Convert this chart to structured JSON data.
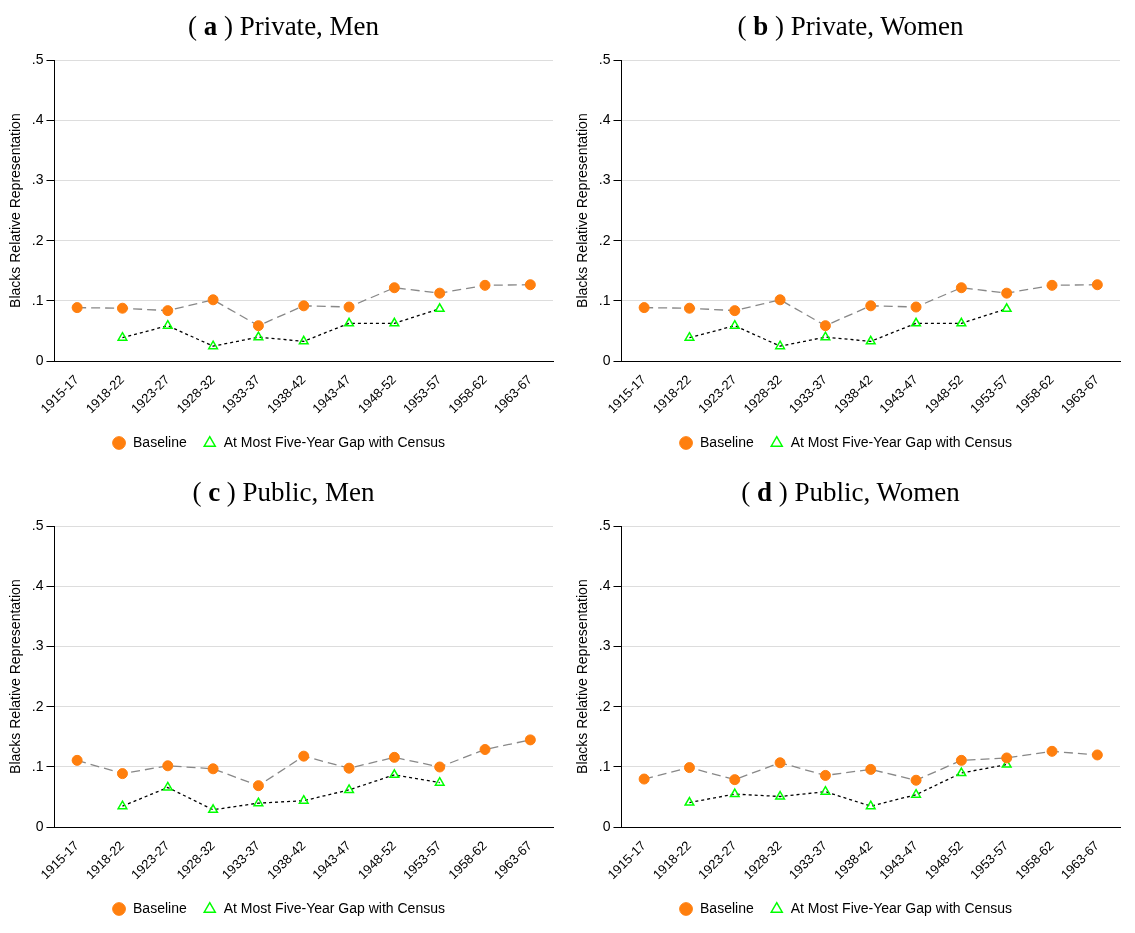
{
  "chart_data": [
    {
      "type": "line",
      "title": "( a ) Private, Men",
      "ylabel": "Blacks Relative Representation",
      "categories": [
        "1915-17",
        "1918-22",
        "1923-27",
        "1928-32",
        "1933-37",
        "1938-42",
        "1943-47",
        "1948-52",
        "1953-57",
        "1958-62",
        "1963-67"
      ],
      "ylim": [
        0,
        0.5
      ],
      "yticks": [
        {
          "value": 0,
          "label": "0"
        },
        {
          "value": 0.1,
          "label": ".1"
        },
        {
          "value": 0.2,
          "label": ".2"
        },
        {
          "value": 0.3,
          "label": ".3"
        },
        {
          "value": 0.4,
          "label": ".4"
        },
        {
          "value": 0.5,
          "label": ".5"
        }
      ],
      "grid": "y",
      "legend": "bottom",
      "series": [
        {
          "name": "Baseline",
          "color": "#ff7f0e",
          "marker": "circle",
          "line_style": "dashed",
          "values": [
            0.089,
            0.088,
            0.084,
            0.102,
            0.059,
            0.092,
            0.09,
            0.122,
            0.113,
            0.126,
            0.127
          ]
        },
        {
          "name": "At Most Five-Year Gap with Census",
          "color": "#00ff00",
          "marker": "triangle",
          "line_style": "dotted",
          "values": [
            null,
            0.039,
            0.059,
            0.025,
            0.04,
            0.033,
            0.063,
            0.063,
            0.087,
            null,
            null
          ]
        }
      ]
    },
    {
      "type": "line",
      "title": "( b ) Private, Women",
      "ylabel": "Blacks Relative Representation",
      "categories": [
        "1915-17",
        "1918-22",
        "1923-27",
        "1928-32",
        "1933-37",
        "1938-42",
        "1943-47",
        "1948-52",
        "1953-57",
        "1958-62",
        "1963-67"
      ],
      "ylim": [
        0,
        0.5
      ],
      "yticks": [
        {
          "value": 0,
          "label": "0"
        },
        {
          "value": 0.1,
          "label": ".1"
        },
        {
          "value": 0.2,
          "label": ".2"
        },
        {
          "value": 0.3,
          "label": ".3"
        },
        {
          "value": 0.4,
          "label": ".4"
        },
        {
          "value": 0.5,
          "label": ".5"
        }
      ],
      "grid": "y",
      "legend": "bottom",
      "series": [
        {
          "name": "Baseline",
          "color": "#ff7f0e",
          "marker": "circle",
          "line_style": "dashed",
          "values": [
            0.089,
            0.088,
            0.084,
            0.102,
            0.059,
            0.092,
            0.09,
            0.122,
            0.113,
            0.126,
            0.127
          ]
        },
        {
          "name": "At Most Five-Year Gap with Census",
          "color": "#00ff00",
          "marker": "triangle",
          "line_style": "dotted",
          "values": [
            null,
            0.039,
            0.059,
            0.025,
            0.04,
            0.033,
            0.063,
            0.063,
            0.087,
            null,
            null
          ]
        }
      ]
    },
    {
      "type": "line",
      "title": "( c ) Public, Men",
      "ylabel": "Blacks Relative Representation",
      "categories": [
        "1915-17",
        "1918-22",
        "1923-27",
        "1928-32",
        "1933-37",
        "1938-42",
        "1943-47",
        "1948-52",
        "1953-57",
        "1958-62",
        "1963-67"
      ],
      "ylim": [
        0,
        0.5
      ],
      "yticks": [
        {
          "value": 0,
          "label": "0"
        },
        {
          "value": 0.1,
          "label": ".1"
        },
        {
          "value": 0.2,
          "label": ".2"
        },
        {
          "value": 0.3,
          "label": ".3"
        },
        {
          "value": 0.4,
          "label": ".4"
        },
        {
          "value": 0.5,
          "label": ".5"
        }
      ],
      "grid": "y",
      "legend": "bottom",
      "series": [
        {
          "name": "Baseline",
          "color": "#ff7f0e",
          "marker": "circle",
          "line_style": "dashed",
          "values": [
            0.111,
            0.089,
            0.102,
            0.097,
            0.069,
            0.118,
            0.098,
            0.116,
            0.1,
            0.129,
            0.145
          ]
        },
        {
          "name": "At Most Five-Year Gap with Census",
          "color": "#00ff00",
          "marker": "triangle",
          "line_style": "dotted",
          "values": [
            null,
            0.035,
            0.066,
            0.029,
            0.04,
            0.044,
            0.062,
            0.087,
            0.074,
            null,
            null
          ]
        }
      ]
    },
    {
      "type": "line",
      "title": "( d ) Public, Women",
      "ylabel": "Blacks Relative Representation",
      "categories": [
        "1915-17",
        "1918-22",
        "1923-27",
        "1928-32",
        "1933-37",
        "1938-42",
        "1943-47",
        "1948-52",
        "1953-57",
        "1958-62",
        "1963-67"
      ],
      "ylim": [
        0,
        0.5
      ],
      "yticks": [
        {
          "value": 0,
          "label": "0"
        },
        {
          "value": 0.1,
          "label": ".1"
        },
        {
          "value": 0.2,
          "label": ".2"
        },
        {
          "value": 0.3,
          "label": ".3"
        },
        {
          "value": 0.4,
          "label": ".4"
        },
        {
          "value": 0.5,
          "label": ".5"
        }
      ],
      "grid": "y",
      "legend": "bottom",
      "series": [
        {
          "name": "Baseline",
          "color": "#ff7f0e",
          "marker": "circle",
          "line_style": "dashed",
          "values": [
            0.08,
            0.099,
            0.079,
            0.107,
            0.086,
            0.096,
            0.078,
            0.111,
            0.115,
            0.126,
            0.12
          ]
        },
        {
          "name": "At Most Five-Year Gap with Census",
          "color": "#00ff00",
          "marker": "triangle",
          "line_style": "dotted",
          "values": [
            null,
            0.041,
            0.055,
            0.051,
            0.059,
            0.035,
            0.054,
            0.09,
            0.104,
            null,
            null
          ]
        }
      ]
    }
  ]
}
